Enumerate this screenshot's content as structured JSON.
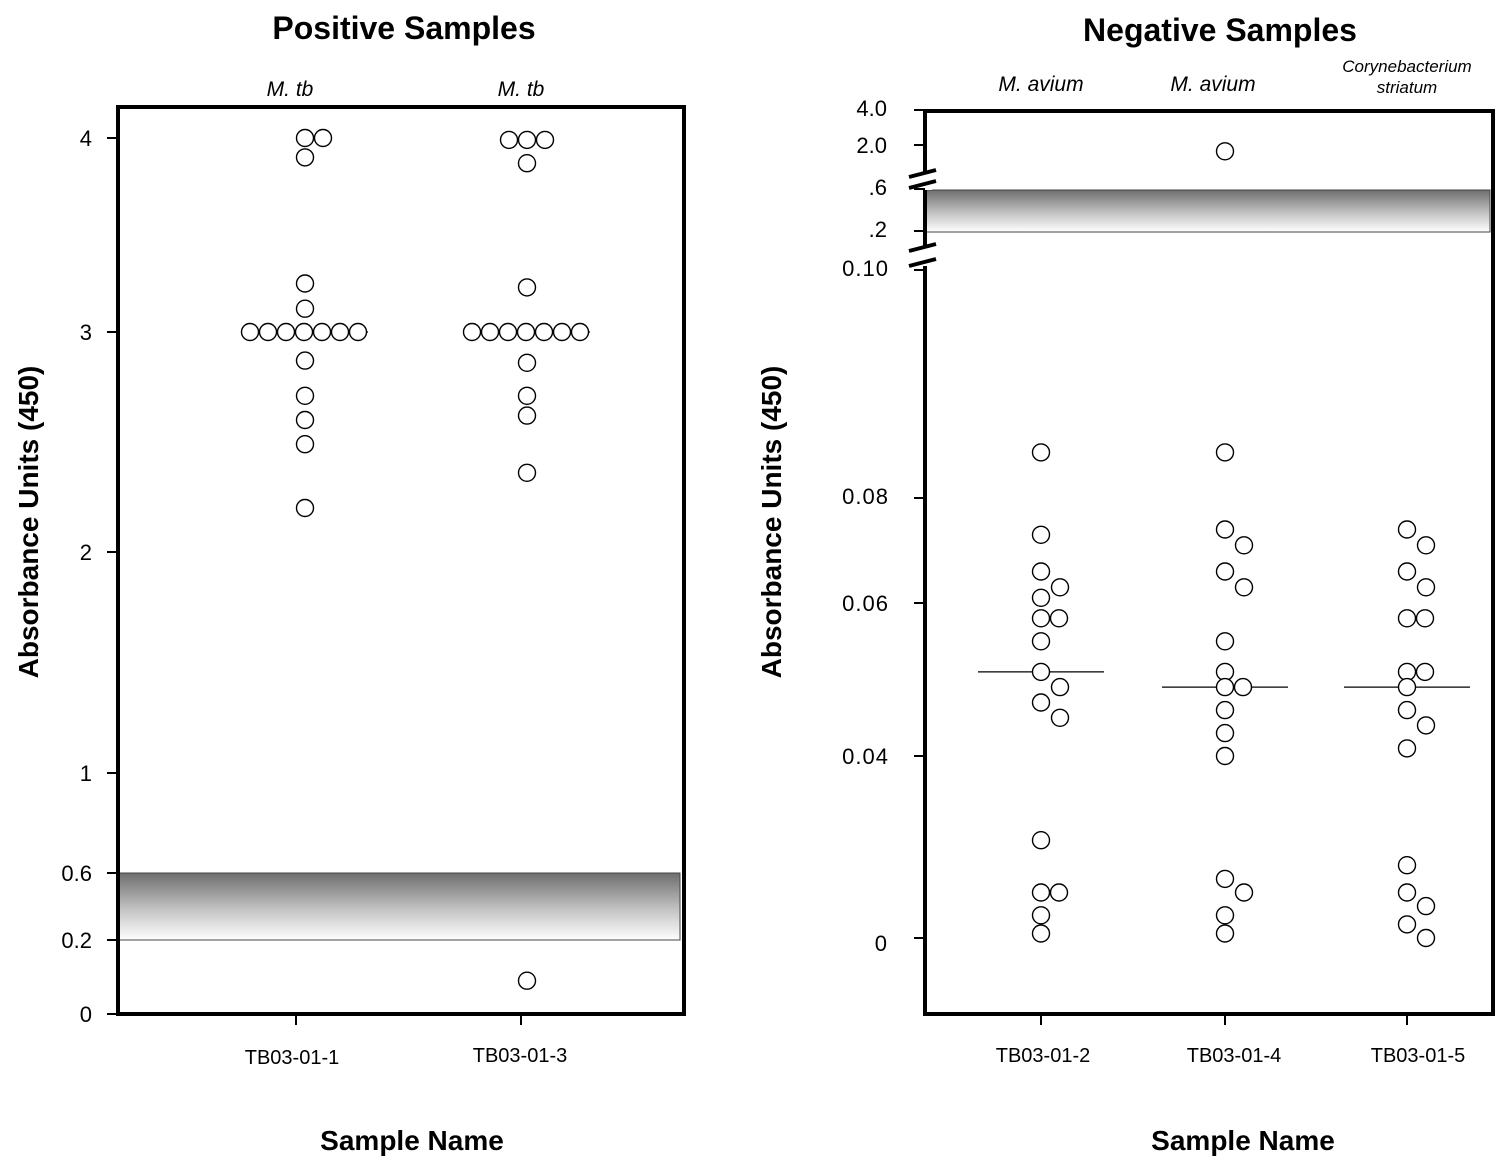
{
  "chart_data": [
    {
      "type": "scatter",
      "title": "Positive Samples",
      "xlabel": "Sample Name",
      "ylabel": "Absorbance Units (450)",
      "categories": [
        "TB03-01-1",
        "TB03-01-3"
      ],
      "organisms": [
        "M. tb",
        "M. tb"
      ],
      "y_ticks": [
        "0",
        "0.2",
        "0.6",
        "1",
        "2",
        "3",
        "4"
      ],
      "cutoff_band": [
        0.2,
        0.6
      ],
      "series": [
        {
          "category": "TB03-01-1",
          "values": [
            4.01,
            4.01,
            3.9,
            3.25,
            3.12,
            3.0,
            3.0,
            3.0,
            3.0,
            3.0,
            3.0,
            3.0,
            2.87,
            2.71,
            2.6,
            2.49,
            2.2
          ],
          "median": 3.0
        },
        {
          "category": "TB03-01-3",
          "values": [
            3.99,
            3.99,
            3.99,
            3.87,
            3.23,
            3.0,
            3.0,
            3.0,
            3.0,
            3.0,
            3.0,
            3.0,
            2.86,
            2.71,
            2.62,
            2.36,
            0.09
          ],
          "median": 3.0
        }
      ],
      "grid": false
    },
    {
      "type": "scatter",
      "title": "Negative Samples",
      "xlabel": "Sample Name",
      "ylabel": "Absorbance Units (450)",
      "categories": [
        "TB03-01-2",
        "TB03-01-4",
        "TB03-01-5"
      ],
      "organisms": [
        "M. avium",
        "M. avium",
        "Corynebacterium\nstriatum"
      ],
      "organism_lines": [
        [
          "M. avium"
        ],
        [
          "M. avium"
        ],
        [
          "Corynebacterium",
          "striatum"
        ]
      ],
      "y_ticks_lower": [
        "0",
        "0.04",
        "0.06",
        "0.08",
        "0.10"
      ],
      "y_ticks_upper": [
        ".2",
        ".6",
        "2.0",
        "4.0"
      ],
      "axis_break": true,
      "cutoff_band": [
        0.2,
        0.6
      ],
      "series": [
        {
          "category": "TB03-01-2",
          "values": [
            0.084,
            0.073,
            0.066,
            0.063,
            0.061,
            0.058,
            0.058,
            0.055,
            0.051,
            0.049,
            0.047,
            0.045,
            0.0215,
            0.01,
            0.01,
            0.005,
            0.001
          ],
          "median": 0.051
        },
        {
          "category": "TB03-01-4",
          "values": [
            1.8,
            0.084,
            0.074,
            0.071,
            0.066,
            0.063,
            0.055,
            0.051,
            0.049,
            0.049,
            0.046,
            0.043,
            0.04,
            0.013,
            0.01,
            0.005,
            0.001
          ],
          "median": 0.049
        },
        {
          "category": "TB03-01-5",
          "values": [
            0.074,
            0.071,
            0.066,
            0.063,
            0.058,
            0.058,
            0.051,
            0.051,
            0.049,
            0.046,
            0.044,
            0.041,
            0.016,
            0.01,
            0.007,
            0.003,
            0.0
          ],
          "median": 0.049
        }
      ],
      "grid": false
    }
  ]
}
